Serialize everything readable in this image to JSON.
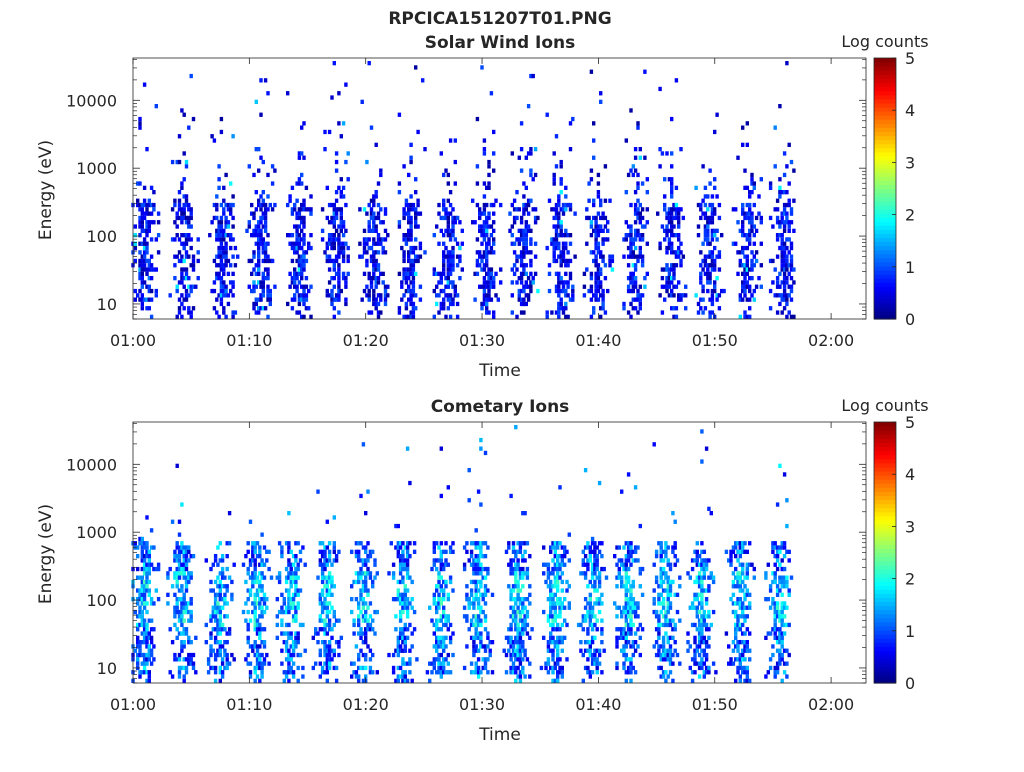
{
  "figure": {
    "title": "RPCICA151207T01.PNG"
  },
  "chart_data": [
    {
      "type": "heatmap",
      "title": "Solar Wind Ions",
      "xlabel": "Time",
      "ylabel": "Energy (eV)",
      "x_ticks": [
        "01:00",
        "01:10",
        "01:20",
        "01:30",
        "01:40",
        "01:50",
        "02:00"
      ],
      "x_range_minutes": [
        0,
        63
      ],
      "y_ticks": [
        "10",
        "100",
        "1000",
        "10000"
      ],
      "y_ticks_values": [
        10,
        100,
        1000,
        10000
      ],
      "y_scale": "log",
      "y_range": [
        6,
        42000
      ],
      "colorbar": {
        "label": "Log counts",
        "ticks": [
          "0",
          "1",
          "2",
          "3",
          "4",
          "5"
        ],
        "range": [
          0,
          5
        ],
        "colormap": "jet"
      },
      "sweep_centers_minutes": [
        1.0,
        4.4,
        7.8,
        11.0,
        14.3,
        17.5,
        20.7,
        23.9,
        27.1,
        30.4,
        33.6,
        36.8,
        40.0,
        43.2,
        46.3,
        49.6,
        52.8,
        56.0
      ],
      "data_end_minutes": 56.8,
      "typical_log_counts": 0.5,
      "energy_core_range_eV": [
        10,
        300
      ]
    },
    {
      "type": "heatmap",
      "title": "Cometary Ions",
      "xlabel": "Time",
      "ylabel": "Energy (eV)",
      "x_ticks": [
        "01:00",
        "01:10",
        "01:20",
        "01:30",
        "01:40",
        "01:50",
        "02:00"
      ],
      "x_range_minutes": [
        0,
        63
      ],
      "y_ticks": [
        "10",
        "100",
        "1000",
        "10000"
      ],
      "y_ticks_values": [
        10,
        100,
        1000,
        10000
      ],
      "y_scale": "log",
      "y_range": [
        6,
        42000
      ],
      "colorbar": {
        "label": "Log counts",
        "ticks": [
          "0",
          "1",
          "2",
          "3",
          "4",
          "5"
        ],
        "range": [
          0,
          5
        ],
        "colormap": "jet"
      },
      "sweep_centers_minutes": [
        1.0,
        4.2,
        7.5,
        10.7,
        13.6,
        16.7,
        19.8,
        23.2,
        26.5,
        29.7,
        33.1,
        36.3,
        39.5,
        42.6,
        45.8,
        48.9,
        52.2,
        55.6
      ],
      "data_end_minutes": 56.8,
      "typical_log_counts": 1.6,
      "energy_core_range_eV": [
        8,
        700
      ]
    }
  ]
}
